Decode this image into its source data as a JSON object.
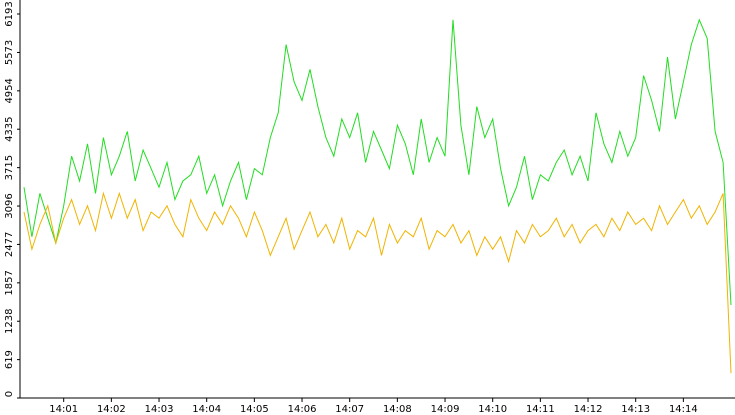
{
  "chart_data": {
    "type": "line",
    "categories": [
      null,
      null,
      null,
      null,
      null,
      "14:01",
      null,
      null,
      null,
      null,
      null,
      "14:02",
      null,
      null,
      null,
      null,
      null,
      "14:03",
      null,
      null,
      null,
      null,
      null,
      "14:04",
      null,
      null,
      null,
      null,
      null,
      "14:05",
      null,
      null,
      null,
      null,
      null,
      "14:06",
      null,
      null,
      null,
      null,
      null,
      "14:07",
      null,
      null,
      null,
      null,
      null,
      "14:08",
      null,
      null,
      null,
      null,
      null,
      "14:09",
      null,
      null,
      null,
      null,
      null,
      "14:10",
      null,
      null,
      null,
      null,
      null,
      "14:11",
      null,
      null,
      null,
      null,
      null,
      "14:12",
      null,
      null,
      null,
      null,
      null,
      "14:13",
      null,
      null,
      null,
      null,
      null,
      "14:14",
      null,
      null,
      null,
      null,
      null,
      null
    ],
    "series": [
      {
        "color": "#22dd22",
        "values": [
          3400,
          2600,
          3300,
          2900,
          2500,
          3100,
          3900,
          3500,
          4100,
          3300,
          4200,
          3600,
          3900,
          4300,
          3500,
          4000,
          3700,
          3400,
          3800,
          3200,
          3500,
          3600,
          3900,
          3300,
          3600,
          3100,
          3500,
          3800,
          3200,
          3700,
          3600,
          4200,
          4600,
          5700,
          5100,
          4800,
          5300,
          4700,
          4200,
          3900,
          4500,
          4200,
          4600,
          3800,
          4300,
          4000,
          3700,
          4400,
          4100,
          3600,
          4500,
          3800,
          4200,
          3900,
          6100,
          4400,
          3600,
          4700,
          4200,
          4500,
          3700,
          3100,
          3400,
          3900,
          3200,
          3600,
          3500,
          3800,
          4000,
          3600,
          3900,
          3500,
          4600,
          4100,
          3800,
          4300,
          3900,
          4200,
          5200,
          4800,
          4300,
          5500,
          4500,
          5100,
          5700,
          6100,
          5800,
          4300,
          3800,
          1500
        ]
      },
      {
        "color": "#f0b400",
        "values": [
          3000,
          2400,
          2800,
          3100,
          2500,
          2900,
          3200,
          2800,
          3100,
          2700,
          3300,
          2900,
          3300,
          2900,
          3200,
          2700,
          3000,
          2900,
          3100,
          2800,
          2600,
          3200,
          2900,
          2700,
          3000,
          2800,
          3100,
          2900,
          2600,
          3000,
          2700,
          2300,
          2600,
          2900,
          2400,
          2700,
          3000,
          2600,
          2800,
          2500,
          2900,
          2400,
          2700,
          2600,
          2900,
          2300,
          2800,
          2500,
          2700,
          2600,
          2900,
          2400,
          2700,
          2600,
          2800,
          2500,
          2700,
          2300,
          2600,
          2400,
          2600,
          2200,
          2700,
          2500,
          2800,
          2600,
          2700,
          2900,
          2600,
          2800,
          2500,
          2700,
          2800,
          2600,
          2900,
          2700,
          3000,
          2800,
          2900,
          2700,
          3100,
          2800,
          3000,
          3200,
          2900,
          3100,
          2800,
          3000,
          3300,
          400
        ]
      }
    ],
    "ylim": [
      0,
      6419
    ],
    "yticks": [
      0,
      619,
      1238,
      1857,
      2477,
      3096,
      3715,
      4335,
      4954,
      5573,
      6193
    ]
  }
}
